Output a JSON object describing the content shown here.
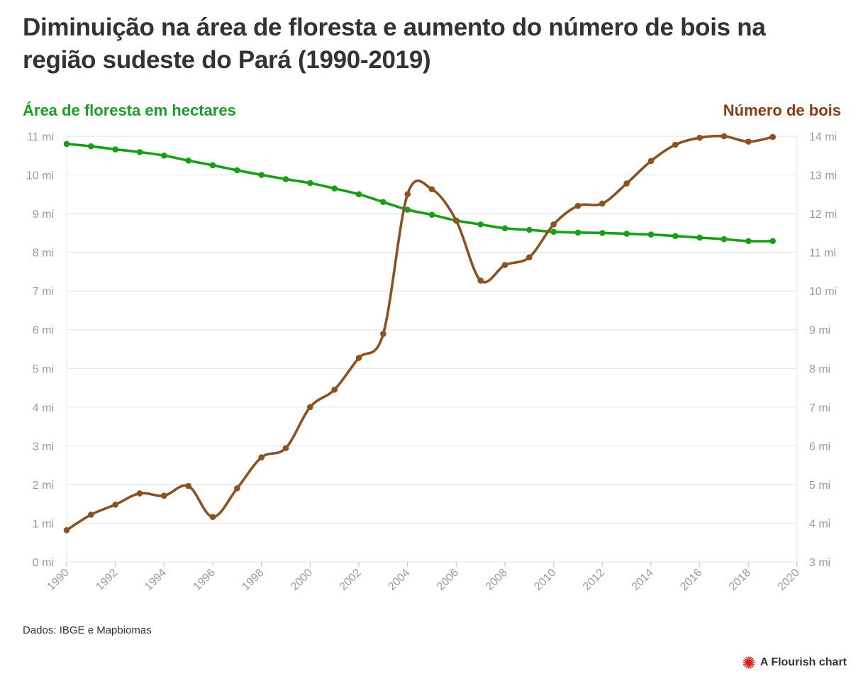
{
  "title": "Diminuição na área de floresta e aumento do número de bois na região sudeste do Pará (1990-2019)",
  "source": "Dados: IBGE e Mapbiomas",
  "credit": "A Flourish chart",
  "colors": {
    "forest": "#1a9e1a",
    "cattle": "#8b5220",
    "grid": "#e6e6e6",
    "tick": "#9a9a9a"
  },
  "chart_data": {
    "type": "line",
    "x": [
      1990,
      1991,
      1992,
      1993,
      1994,
      1995,
      1996,
      1997,
      1998,
      1999,
      2000,
      2001,
      2002,
      2003,
      2004,
      2005,
      2006,
      2007,
      2008,
      2009,
      2010,
      2011,
      2012,
      2013,
      2014,
      2015,
      2016,
      2017,
      2018,
      2019
    ],
    "xlim": [
      1990,
      2020
    ],
    "xticks": [
      1990,
      1992,
      1994,
      1996,
      1998,
      2000,
      2002,
      2004,
      2006,
      2008,
      2010,
      2012,
      2014,
      2016,
      2018,
      2020
    ],
    "series": [
      {
        "name": "Área de floresta em hectares",
        "axis": "left",
        "values": [
          10.8,
          10.74,
          10.66,
          10.59,
          10.5,
          10.37,
          10.25,
          10.12,
          10.0,
          9.89,
          9.79,
          9.65,
          9.5,
          9.3,
          9.1,
          8.97,
          8.82,
          8.72,
          8.62,
          8.58,
          8.53,
          8.51,
          8.5,
          8.48,
          8.46,
          8.42,
          8.38,
          8.34,
          8.29,
          8.29
        ]
      },
      {
        "name": "Número de bois",
        "axis": "right",
        "values": [
          3.82,
          4.22,
          4.48,
          4.77,
          4.71,
          4.96,
          4.16,
          4.9,
          5.7,
          5.94,
          7.0,
          7.45,
          8.27,
          8.89,
          12.5,
          12.63,
          11.82,
          10.27,
          10.67,
          10.87,
          11.72,
          12.2,
          12.26,
          12.78,
          13.36,
          13.78,
          13.96,
          14.0,
          13.86,
          13.98
        ]
      }
    ],
    "yleft": {
      "title": "Área de floresta em hectares",
      "ylim": [
        0,
        11
      ],
      "ticks": [
        0,
        1,
        2,
        3,
        4,
        5,
        6,
        7,
        8,
        9,
        10,
        11
      ],
      "suffix": " mi"
    },
    "yright": {
      "title": "Número de bois",
      "ylim": [
        3,
        14
      ],
      "ticks": [
        3,
        4,
        5,
        6,
        7,
        8,
        9,
        10,
        11,
        12,
        13,
        14
      ],
      "suffix": " mi"
    },
    "grid": true
  }
}
